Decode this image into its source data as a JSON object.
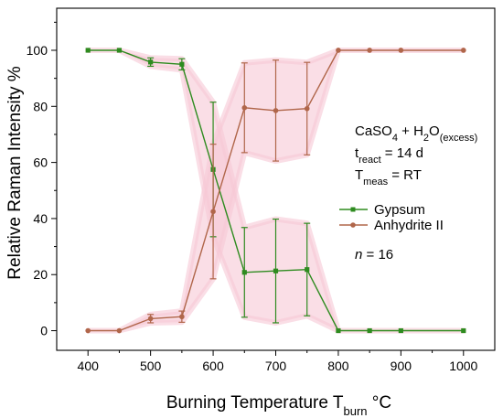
{
  "chart_data": {
    "type": "line",
    "title": "",
    "xlabel": {
      "main": "Burning Temperature T",
      "sub": "burn",
      "unit": " °C"
    },
    "ylabel": "Relative Raman Intensity %",
    "xlim": [
      350,
      1050
    ],
    "ylim": [
      -7,
      115
    ],
    "xticks": [
      "400",
      "500",
      "600",
      "700",
      "800",
      "900",
      "1000"
    ],
    "yticks": [
      "0",
      "20",
      "40",
      "60",
      "80",
      "100"
    ],
    "x": [
      400,
      450,
      500,
      550,
      600,
      650,
      700,
      750,
      800,
      850,
      900,
      1000
    ],
    "series": [
      {
        "name": "Gypsum",
        "color": "#2e8b1f",
        "marker": "square",
        "values": [
          100,
          100,
          95.8,
          95,
          57.5,
          20.8,
          21.3,
          21.8,
          0,
          0,
          0,
          0
        ],
        "errors": [
          0,
          0,
          1.5,
          2,
          24,
          16,
          18.5,
          16.5,
          0,
          0,
          0,
          0
        ]
      },
      {
        "name": "Anhydrite II",
        "color": "#b0664a",
        "marker": "circle",
        "values": [
          0,
          0,
          4.3,
          5,
          42.5,
          79.5,
          78.5,
          79.2,
          100,
          100,
          100,
          100
        ],
        "errors": [
          0,
          0,
          1.5,
          2,
          24,
          16,
          18,
          16.5,
          0,
          0,
          0,
          0
        ]
      }
    ],
    "error_band_color": "#f7c8d6",
    "legend_position": "center-right",
    "grid": false,
    "annotations": {
      "formula": {
        "a": "CaSO",
        "a_sub": "4",
        "b": " + H",
        "b_sub": "2",
        "c": "O",
        "c_sub": "(excess)"
      },
      "treact": {
        "main": "t",
        "sub": "react",
        "rest": " = 14 d"
      },
      "tmeas": {
        "main": "T",
        "sub": "meas",
        "rest": " = RT"
      },
      "n": {
        "var": "n",
        "rest": " = 16"
      }
    }
  }
}
